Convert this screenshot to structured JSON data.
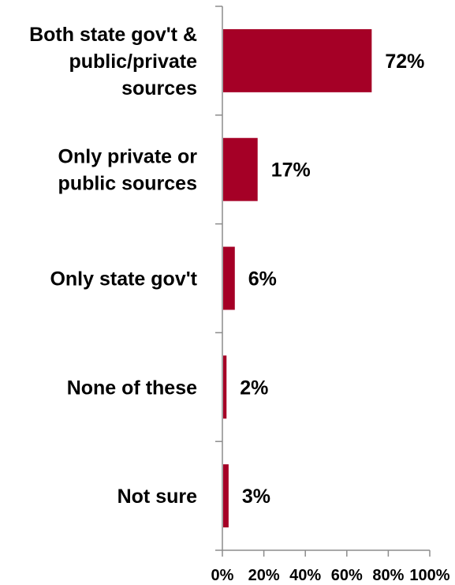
{
  "chart_data": {
    "type": "bar",
    "orientation": "horizontal",
    "title": "",
    "xlabel": "",
    "ylabel": "",
    "categories": [
      "Both state gov't & public/private sources",
      "Only private or public sources",
      "Only state gov't",
      "None of these",
      "Not sure"
    ],
    "category_lines": [
      [
        "Both state gov't &",
        "public/private",
        "sources"
      ],
      [
        "Only private or",
        "public sources"
      ],
      [
        "Only state gov't"
      ],
      [
        "None of these"
      ],
      [
        "Not sure"
      ]
    ],
    "values": [
      72,
      17,
      6,
      2,
      3
    ],
    "data_labels": [
      "72%",
      "17%",
      "6%",
      "2%",
      "3%"
    ],
    "x_ticks": [
      0,
      20,
      40,
      60,
      80,
      100
    ],
    "x_tick_labels": [
      "0%",
      "20%",
      "40%",
      "60%",
      "80%",
      "100%"
    ],
    "xlim": [
      0,
      100
    ],
    "bar_color": "#a50026",
    "grid": false,
    "legend": "none"
  }
}
